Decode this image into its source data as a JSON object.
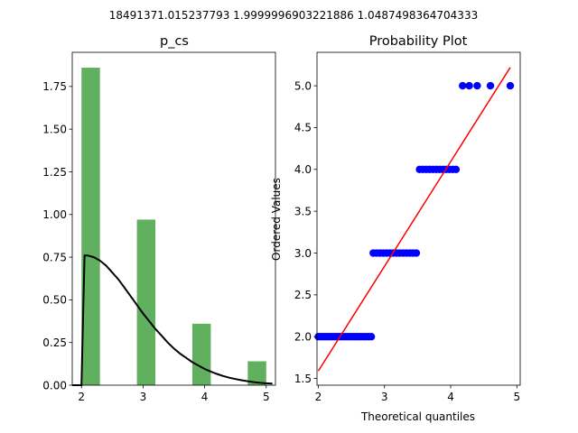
{
  "figure": {
    "suptitle": "18491371.015237793 1.9999996903221886 1.0487498364704333"
  },
  "chart_data": [
    {
      "type": "bar",
      "subtype": "histogram-with-density-curve",
      "title": "p_cs",
      "xlabel": "",
      "ylabel": "",
      "xlim": [
        1.85,
        5.15
      ],
      "ylim": [
        0,
        1.95
      ],
      "xticks": [
        2,
        3,
        4,
        5
      ],
      "yticks": [
        0.0,
        0.25,
        0.5,
        0.75,
        1.0,
        1.25,
        1.5,
        1.75
      ],
      "ytick_labels": [
        "0.00",
        "0.25",
        "0.50",
        "0.75",
        "1.00",
        "1.25",
        "1.50",
        "1.75"
      ],
      "bar_color": "#60b060",
      "bars": [
        {
          "x0": 2.0,
          "x1": 2.3,
          "value": 1.86
        },
        {
          "x0": 2.9,
          "x1": 3.2,
          "value": 0.97
        },
        {
          "x0": 3.8,
          "x1": 4.1,
          "value": 0.36
        },
        {
          "x0": 4.7,
          "x1": 5.0,
          "value": 0.14
        }
      ],
      "curve": {
        "name": "",
        "color": "#000000",
        "points": [
          [
            1.85,
            0.0
          ],
          [
            2.0,
            0.0
          ],
          [
            2.05,
            0.76
          ],
          [
            2.1,
            0.76
          ],
          [
            2.2,
            0.75
          ],
          [
            2.3,
            0.73
          ],
          [
            2.4,
            0.7
          ],
          [
            2.5,
            0.66
          ],
          [
            2.6,
            0.62
          ],
          [
            2.7,
            0.57
          ],
          [
            2.8,
            0.52
          ],
          [
            2.9,
            0.47
          ],
          [
            3.0,
            0.42
          ],
          [
            3.1,
            0.375
          ],
          [
            3.2,
            0.33
          ],
          [
            3.3,
            0.29
          ],
          [
            3.4,
            0.25
          ],
          [
            3.5,
            0.215
          ],
          [
            3.6,
            0.185
          ],
          [
            3.7,
            0.16
          ],
          [
            3.8,
            0.135
          ],
          [
            3.9,
            0.115
          ],
          [
            4.0,
            0.095
          ],
          [
            4.1,
            0.08
          ],
          [
            4.2,
            0.066
          ],
          [
            4.3,
            0.054
          ],
          [
            4.4,
            0.044
          ],
          [
            4.5,
            0.036
          ],
          [
            4.6,
            0.029
          ],
          [
            4.7,
            0.023
          ],
          [
            4.8,
            0.018
          ],
          [
            4.9,
            0.014
          ],
          [
            5.0,
            0.011
          ],
          [
            5.1,
            0.009
          ]
        ]
      }
    },
    {
      "type": "scatter",
      "title": "Probability Plot",
      "xlabel": "Theoretical quantiles",
      "ylabel": "Ordered Values",
      "xlim": [
        1.98,
        5.05
      ],
      "ylim": [
        1.42,
        5.4
      ],
      "xticks": [
        2,
        3,
        4,
        5
      ],
      "yticks": [
        1.5,
        2.0,
        2.5,
        3.0,
        3.5,
        4.0,
        4.5,
        5.0
      ],
      "ytick_labels": [
        "1.5",
        "2.0",
        "2.5",
        "3.0",
        "3.5",
        "4.0",
        "4.5",
        "5.0"
      ],
      "point_color": "#0000ff",
      "line_color": "#ff0000",
      "points": [
        [
          2.0,
          2.0
        ],
        [
          2.04,
          2.0
        ],
        [
          2.08,
          2.0
        ],
        [
          2.12,
          2.0
        ],
        [
          2.16,
          2.0
        ],
        [
          2.2,
          2.0
        ],
        [
          2.24,
          2.0
        ],
        [
          2.28,
          2.0
        ],
        [
          2.32,
          2.0
        ],
        [
          2.36,
          2.0
        ],
        [
          2.4,
          2.0
        ],
        [
          2.44,
          2.0
        ],
        [
          2.48,
          2.0
        ],
        [
          2.52,
          2.0
        ],
        [
          2.56,
          2.0
        ],
        [
          2.6,
          2.0
        ],
        [
          2.64,
          2.0
        ],
        [
          2.68,
          2.0
        ],
        [
          2.72,
          2.0
        ],
        [
          2.76,
          2.0
        ],
        [
          2.8,
          2.0
        ],
        [
          2.83,
          3.0
        ],
        [
          2.88,
          3.0
        ],
        [
          2.93,
          3.0
        ],
        [
          2.98,
          3.0
        ],
        [
          3.03,
          3.0
        ],
        [
          3.08,
          3.0
        ],
        [
          3.13,
          3.0
        ],
        [
          3.18,
          3.0
        ],
        [
          3.23,
          3.0
        ],
        [
          3.28,
          3.0
        ],
        [
          3.33,
          3.0
        ],
        [
          3.38,
          3.0
        ],
        [
          3.43,
          3.0
        ],
        [
          3.48,
          3.0
        ],
        [
          3.53,
          4.0
        ],
        [
          3.58,
          4.0
        ],
        [
          3.63,
          4.0
        ],
        [
          3.68,
          4.0
        ],
        [
          3.73,
          4.0
        ],
        [
          3.78,
          4.0
        ],
        [
          3.83,
          4.0
        ],
        [
          3.88,
          4.0
        ],
        [
          3.93,
          4.0
        ],
        [
          3.98,
          4.0
        ],
        [
          4.03,
          4.0
        ],
        [
          4.08,
          4.0
        ],
        [
          4.18,
          5.0
        ],
        [
          4.28,
          5.0
        ],
        [
          4.4,
          5.0
        ],
        [
          4.6,
          5.0
        ],
        [
          4.9,
          5.0
        ]
      ],
      "fit_line": [
        [
          2.0,
          1.59
        ],
        [
          4.9,
          5.22
        ]
      ]
    }
  ]
}
